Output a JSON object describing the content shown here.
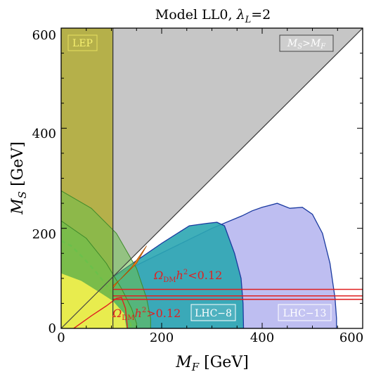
{
  "chart_data": {
    "type": "area",
    "title": "Model LL0, λL=2",
    "title_parts": {
      "prefix": "Model LL0, ",
      "lambda": "λ",
      "lambda_sub": "L",
      "suffix": "=2"
    },
    "xlabel": {
      "main": "M",
      "sub": "F",
      "unit": " [GeV]"
    },
    "ylabel": {
      "main": "M",
      "sub": "S",
      "unit": " [GeV]"
    },
    "xlim": [
      0,
      600
    ],
    "ylim": [
      0,
      600
    ],
    "x_ticks": [
      "0",
      "200",
      "400",
      "600"
    ],
    "y_ticks": [
      "0",
      "200",
      "400",
      "600"
    ],
    "grid": false,
    "colors": {
      "lep": "#b5b04a",
      "triangle": "#c6c6c6",
      "lhc8": "#2ba6b1",
      "lhc13": "#b3b3ef",
      "dm_green": "#6cc04a",
      "dm_yellow": "#fbf44f",
      "relic": "#e02020",
      "orange": "#e8801a",
      "dark_teal": "#207f70"
    },
    "regions": [
      {
        "name": "LEP",
        "label": "LEP",
        "x": [
          0,
          103,
          103,
          0
        ],
        "y": [
          0,
          0,
          600,
          600
        ]
      },
      {
        "name": "MS>MF",
        "label": {
          "a": "M",
          "a_sub": "S",
          "op": ">",
          "b": "M",
          "b_sub": "F"
        },
        "x": [
          103,
          600,
          103
        ],
        "y": [
          103,
          600,
          600
        ]
      },
      {
        "name": "LHC-13",
        "label": "LHC−13",
        "x": [
          103,
          300,
          360,
          380,
          400,
          430,
          455,
          480,
          500,
          520,
          535,
          545,
          548,
          548,
          103
        ],
        "y": [
          103,
          200,
          225,
          235,
          242,
          250,
          240,
          242,
          228,
          190,
          130,
          60,
          20,
          0,
          0
        ]
      },
      {
        "name": "LHC-8",
        "label": "LHC−8",
        "x": [
          103,
          200,
          255,
          290,
          310,
          325,
          345,
          358,
          362,
          363,
          103
        ],
        "y": [
          103,
          170,
          205,
          210,
          212,
          205,
          150,
          100,
          50,
          0,
          0
        ]
      }
    ],
    "dm_contours": {
      "outer_green": {
        "x": [
          0,
          60,
          110,
          150,
          170,
          178,
          178,
          0
        ],
        "y": [
          275,
          240,
          190,
          120,
          60,
          20,
          0,
          0
        ]
      },
      "inner_green": {
        "x": [
          0,
          50,
          90,
          120,
          140,
          150,
          150,
          0
        ],
        "y": [
          215,
          180,
          130,
          80,
          40,
          10,
          0,
          0
        ]
      },
      "dashed": {
        "x": [
          0,
          20,
          45,
          70,
          95,
          110,
          125,
          135,
          140
        ],
        "y": [
          175,
          165,
          140,
          112,
          80,
          60,
          40,
          20,
          0
        ]
      },
      "yellow": {
        "x": [
          0,
          40,
          80,
          103,
          125,
          130,
          103,
          0
        ],
        "y": [
          110,
          95,
          70,
          55,
          30,
          0,
          0,
          0
        ]
      },
      "orange_band": {
        "x": [
          103,
          120,
          150,
          170,
          165,
          140,
          112,
          103
        ],
        "y": [
          85,
          100,
          130,
          165,
          158,
          122,
          92,
          80
        ]
      },
      "red_curve": {
        "x": [
          25,
          60,
          90,
          110,
          120,
          128,
          132
        ],
        "y": [
          0,
          25,
          45,
          60,
          62,
          40,
          0
        ]
      }
    },
    "relic_lines": [
      {
        "x": [
          103,
          600
        ],
        "y": [
          78,
          78
        ]
      },
      {
        "x": [
          103,
          600
        ],
        "y": [
          65,
          65
        ]
      },
      {
        "x": [
          103,
          600
        ],
        "y": [
          58,
          58
        ]
      }
    ],
    "annotations": [
      {
        "name": "omega-less",
        "parts": {
          "omega": "Ω",
          "sub": "DM",
          "h": "h",
          "sup": "2",
          "rel": "<0.12"
        },
        "x": 185,
        "y": 108
      },
      {
        "name": "omega-greater",
        "parts": {
          "omega": "Ω",
          "sub": "DM",
          "h": "h",
          "sup": "2",
          "rel": ">0.12"
        },
        "x": 112,
        "y": 27
      }
    ]
  }
}
